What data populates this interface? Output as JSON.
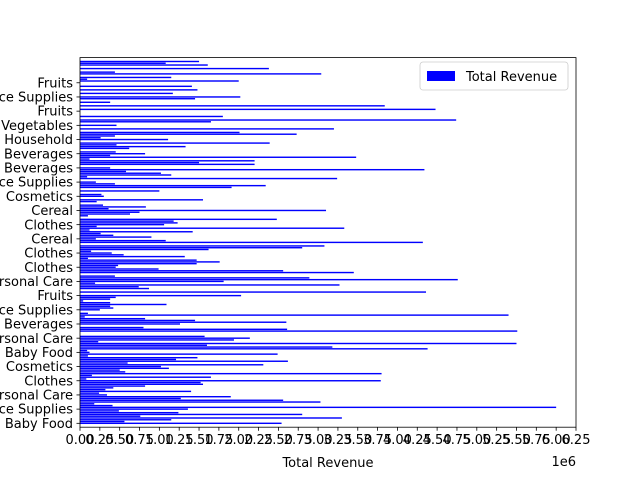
{
  "chart_data": {
    "type": "bar",
    "orientation": "horizontal",
    "title": "",
    "xlabel": "Total Revenue",
    "ylabel": "",
    "x_offset_text": "1e6",
    "xlim": [
      0,
      6250000
    ],
    "x_ticks": [
      0,
      250000,
      500000,
      750000,
      1000000,
      1250000,
      1500000,
      1750000,
      2000000,
      2250000,
      2500000,
      2750000,
      3000000,
      3250000,
      3500000,
      3750000,
      4000000,
      4250000,
      4500000,
      4750000,
      5000000,
      5250000,
      5500000,
      5750000,
      6000000,
      6250000
    ],
    "x_tick_labels": [
      "0.00",
      "0.25",
      "0.50",
      "0.75",
      "1.00",
      "1.25",
      "1.50",
      "1.75",
      "2.00",
      "2.25",
      "2.50",
      "2.75",
      "3.00",
      "3.25",
      "3.50",
      "3.75",
      "4.00",
      "4.25",
      "4.50",
      "4.75",
      "5.00",
      "5.25",
      "5.50",
      "5.75",
      "6.00",
      "6.25"
    ],
    "ytick_labels": [
      "Baby Food",
      "Office Supplies",
      "Personal Care",
      "Clothes",
      "Cosmetics",
      "Baby Food",
      "Personal Care",
      "Beverages",
      "Office Supplies",
      "Fruits",
      "Personal Care",
      "Clothes",
      "Clothes",
      "Cereal",
      "Clothes",
      "Cereal",
      "Cosmetics",
      "Office Supplies",
      "Beverages",
      "Beverages",
      "Household",
      "Vegetables",
      "Fruits",
      "Office Supplies",
      "Fruits"
    ],
    "legend": {
      "entries": [
        "Total Revenue"
      ],
      "location": "upper right"
    },
    "bar_color": "#0000ff",
    "series": [
      {
        "name": "Total Revenue",
        "values": [
          2540000,
          560000,
          1150000,
          3300000,
          760000,
          2800000,
          1240000,
          490000,
          1360000,
          6000000,
          410000,
          180000,
          3030000,
          2560000,
          1270000,
          1900000,
          340000,
          240000,
          1400000,
          320000,
          420000,
          820000,
          1550000,
          1520000,
          3790000,
          80000,
          1650000,
          150000,
          3800000,
          570000,
          500000,
          1120000,
          1020000,
          2310000,
          600000,
          2620000,
          1210000,
          1480000,
          100000,
          2490000,
          120000,
          90000,
          4380000,
          3180000,
          1600000,
          5500000,
          230000,
          1940000,
          2140000,
          1570000,
          0,
          0,
          5510000,
          2610000,
          800000,
          0,
          1260000,
          2600000,
          1450000,
          820000,
          60000,
          5400000,
          100000,
          0,
          250000,
          420000,
          380000,
          1090000,
          380000,
          40000,
          380000,
          450000,
          2030000,
          0,
          4360000,
          0,
          870000,
          740000,
          3270000,
          190000,
          1810000,
          4760000,
          2890000,
          440000,
          0,
          3450000,
          2560000,
          990000,
          450000,
          480000,
          1470000,
          1760000,
          1470000,
          100000,
          1320000,
          550000,
          400000,
          140000,
          1620000,
          2800000,
          3080000,
          0,
          4320000,
          1080000,
          200000,
          900000,
          420000,
          260000,
          1420000,
          120000,
          3330000,
          210000,
          1060000,
          1230000,
          1180000,
          2480000,
          0,
          100000,
          630000,
          750000,
          3100000,
          360000,
          830000,
          290000,
          0,
          210000,
          1550000,
          0,
          300000,
          270000,
          0,
          1000000,
          0,
          1910000,
          2340000,
          440000,
          200000,
          0,
          3240000,
          90000,
          1150000,
          1020000,
          580000,
          4340000,
          380000,
          0,
          2200000,
          1500000,
          2200000,
          120000,
          3480000,
          380000,
          820000,
          450000,
          0,
          620000,
          1330000,
          460000,
          2390000,
          0,
          1110000,
          260000,
          440000,
          2730000,
          2010000,
          0,
          3200000,
          0,
          460000,
          0,
          1650000,
          4740000,
          0,
          1800000,
          0,
          0,
          0,
          4480000,
          0,
          3840000,
          0,
          380000,
          0,
          1450000,
          2020000,
          0,
          1170000,
          0,
          1480000,
          0,
          1410000,
          0,
          0,
          2000000,
          90000,
          1150000,
          0,
          3040000,
          440000,
          0,
          2380000,
          0,
          1610000,
          1080000,
          1500000
        ]
      }
    ]
  }
}
